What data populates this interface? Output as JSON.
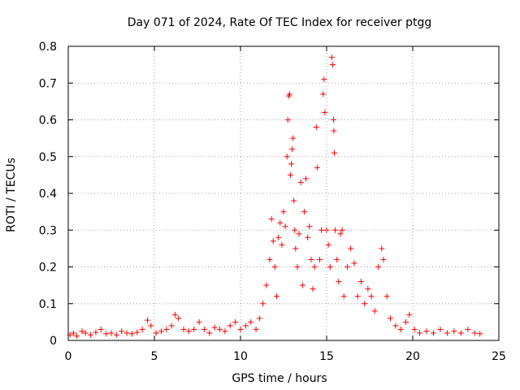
{
  "chart_data": {
    "type": "scatter",
    "title": "Day 071 of 2024, Rate Of TEC Index for receiver ptgg",
    "xlabel": "GPS time / hours",
    "ylabel": "ROTI / TECUs",
    "xlim": [
      0,
      25
    ],
    "ylim": [
      0,
      0.8
    ],
    "xticks": [
      0,
      5,
      10,
      15,
      20,
      25
    ],
    "yticks": [
      0,
      0.1,
      0.2,
      0.3,
      0.4,
      0.5,
      0.6,
      0.7,
      0.8
    ],
    "xtick_labels": [
      "0",
      "5",
      "10",
      "15",
      "20",
      "25"
    ],
    "ytick_labels": [
      "0",
      "0.1",
      "0.2",
      "0.3",
      "0.4",
      "0.5",
      "0.6",
      "0.7",
      "0.8"
    ],
    "grid": true,
    "marker": "+",
    "color": "#ff0000",
    "series": [
      {
        "name": "ROTI",
        "points": [
          [
            0.1,
            0.015
          ],
          [
            0.3,
            0.02
          ],
          [
            0.5,
            0.012
          ],
          [
            0.8,
            0.025
          ],
          [
            1.0,
            0.02
          ],
          [
            1.3,
            0.015
          ],
          [
            1.6,
            0.022
          ],
          [
            1.9,
            0.03
          ],
          [
            2.2,
            0.018
          ],
          [
            2.5,
            0.02
          ],
          [
            2.8,
            0.015
          ],
          [
            3.1,
            0.025
          ],
          [
            3.4,
            0.02
          ],
          [
            3.7,
            0.018
          ],
          [
            4.0,
            0.022
          ],
          [
            4.3,
            0.03
          ],
          [
            4.6,
            0.055
          ],
          [
            4.8,
            0.04
          ],
          [
            5.1,
            0.02
          ],
          [
            5.4,
            0.025
          ],
          [
            5.7,
            0.03
          ],
          [
            6.0,
            0.04
          ],
          [
            6.2,
            0.07
          ],
          [
            6.4,
            0.06
          ],
          [
            6.7,
            0.03
          ],
          [
            7.0,
            0.025
          ],
          [
            7.3,
            0.03
          ],
          [
            7.6,
            0.05
          ],
          [
            7.9,
            0.03
          ],
          [
            8.2,
            0.02
          ],
          [
            8.5,
            0.035
          ],
          [
            8.8,
            0.03
          ],
          [
            9.1,
            0.025
          ],
          [
            9.4,
            0.04
          ],
          [
            9.7,
            0.05
          ],
          [
            10.0,
            0.03
          ],
          [
            10.3,
            0.04
          ],
          [
            10.6,
            0.05
          ],
          [
            10.9,
            0.03
          ],
          [
            11.1,
            0.06
          ],
          [
            11.3,
            0.1
          ],
          [
            11.5,
            0.15
          ],
          [
            11.7,
            0.22
          ],
          [
            11.8,
            0.33
          ],
          [
            11.9,
            0.27
          ],
          [
            12.0,
            0.2
          ],
          [
            12.1,
            0.12
          ],
          [
            12.2,
            0.28
          ],
          [
            12.3,
            0.32
          ],
          [
            12.4,
            0.26
          ],
          [
            12.5,
            0.35
          ],
          [
            12.6,
            0.31
          ],
          [
            12.7,
            0.5
          ],
          [
            12.75,
            0.6
          ],
          [
            12.8,
            0.665
          ],
          [
            12.85,
            0.67
          ],
          [
            12.9,
            0.45
          ],
          [
            12.95,
            0.48
          ],
          [
            13.0,
            0.52
          ],
          [
            13.05,
            0.55
          ],
          [
            13.1,
            0.38
          ],
          [
            13.15,
            0.3
          ],
          [
            13.2,
            0.25
          ],
          [
            13.3,
            0.2
          ],
          [
            13.4,
            0.29
          ],
          [
            13.5,
            0.43
          ],
          [
            13.6,
            0.15
          ],
          [
            13.7,
            0.35
          ],
          [
            13.8,
            0.44
          ],
          [
            13.9,
            0.28
          ],
          [
            14.0,
            0.31
          ],
          [
            14.1,
            0.22
          ],
          [
            14.2,
            0.14
          ],
          [
            14.3,
            0.2
          ],
          [
            14.4,
            0.58
          ],
          [
            14.45,
            0.47
          ],
          [
            14.6,
            0.22
          ],
          [
            14.7,
            0.3
          ],
          [
            14.8,
            0.67
          ],
          [
            14.85,
            0.71
          ],
          [
            14.9,
            0.62
          ],
          [
            15.0,
            0.3
          ],
          [
            15.1,
            0.26
          ],
          [
            15.2,
            0.2
          ],
          [
            15.3,
            0.77
          ],
          [
            15.35,
            0.75
          ],
          [
            15.4,
            0.6
          ],
          [
            15.42,
            0.57
          ],
          [
            15.45,
            0.51
          ],
          [
            15.5,
            0.3
          ],
          [
            15.6,
            0.22
          ],
          [
            15.7,
            0.16
          ],
          [
            15.8,
            0.29
          ],
          [
            15.9,
            0.3
          ],
          [
            16.0,
            0.12
          ],
          [
            16.2,
            0.2
          ],
          [
            16.4,
            0.25
          ],
          [
            16.6,
            0.21
          ],
          [
            16.8,
            0.12
          ],
          [
            17.0,
            0.16
          ],
          [
            17.2,
            0.1
          ],
          [
            17.4,
            0.14
          ],
          [
            17.6,
            0.12
          ],
          [
            17.8,
            0.08
          ],
          [
            18.0,
            0.2
          ],
          [
            18.2,
            0.25
          ],
          [
            18.3,
            0.22
          ],
          [
            18.5,
            0.12
          ],
          [
            18.7,
            0.06
          ],
          [
            19.0,
            0.04
          ],
          [
            19.3,
            0.03
          ],
          [
            19.6,
            0.05
          ],
          [
            19.8,
            0.07
          ],
          [
            20.1,
            0.03
          ],
          [
            20.4,
            0.02
          ],
          [
            20.8,
            0.025
          ],
          [
            21.2,
            0.02
          ],
          [
            21.6,
            0.03
          ],
          [
            22.0,
            0.02
          ],
          [
            22.4,
            0.025
          ],
          [
            22.8,
            0.02
          ],
          [
            23.2,
            0.03
          ],
          [
            23.6,
            0.02
          ],
          [
            23.9,
            0.018
          ]
        ]
      }
    ]
  }
}
